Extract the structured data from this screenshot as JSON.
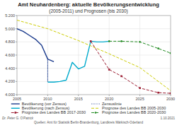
{
  "chart_data": {
    "type": "line",
    "title": "Amt Neuhardenberg: aktuelle Bevölkerungsentwicklung",
    "subtitle": "(2005-2011) und Prognosen (bis 2030)",
    "xlim": [
      2005,
      2030
    ],
    "xticks": [
      2005,
      2010,
      2015,
      2020,
      2025,
      2030
    ],
    "ylim": [
      4000,
      5200
    ],
    "yticks": [
      {
        "value": 4000,
        "label": "4.000"
      },
      {
        "value": 4200,
        "label": "4.200"
      },
      {
        "value": 4400,
        "label": "4.400"
      },
      {
        "value": 4600,
        "label": "4.600"
      },
      {
        "value": 4800,
        "label": "4.800"
      },
      {
        "value": 5000,
        "label": "5.000"
      },
      {
        "value": 5200,
        "label": "5.200"
      }
    ],
    "grid": true,
    "legend": "bottom",
    "series": [
      {
        "name": "Bevölkerung (vor Zensus)",
        "color": "#1a3a8c",
        "line_style": "solid",
        "x": [
          2005,
          2006,
          2007,
          2008,
          2009,
          2010,
          2011
        ],
        "values": [
          5000,
          4960,
          4900,
          4840,
          4750,
          4540,
          4500
        ]
      },
      {
        "name": "Zensuslinie",
        "color": "#1a3a8c",
        "line_style": "dotted",
        "x": [
          2010,
          2010
        ],
        "values": [
          4540,
          4190
        ]
      },
      {
        "name": "Bevölkerung (nach Zensus)",
        "color": "#00aacc",
        "line_style": "solid",
        "x": [
          2010,
          2011,
          2012,
          2013,
          2014,
          2015,
          2016,
          2017,
          2018,
          2019,
          2020
        ],
        "values": [
          4190,
          4190,
          4200,
          4220,
          4490,
          4390,
          4430,
          4810,
          4800,
          4800,
          4810
        ]
      },
      {
        "name": "Prognose des Landes BB 2005-2030",
        "color": "#cccc00",
        "line_style": "dashed",
        "x": [
          2005,
          2010,
          2015,
          2020,
          2025,
          2030
        ],
        "values": [
          5130,
          5000,
          4820,
          4620,
          4410,
          4060
        ]
      },
      {
        "name": "Prognose des Landes BB 2017-2030",
        "color": "#9b1b30",
        "line_style": "dashed",
        "marker": "square",
        "x": [
          2017,
          2020,
          2022,
          2025,
          2028,
          2030
        ],
        "values": [
          4810,
          4380,
          4280,
          4100,
          4030,
          4020
        ]
      },
      {
        "name": "Prognose des Landes BB 2020-2030",
        "color": "#228b22",
        "line_style": "dashed",
        "marker": "circle",
        "x": [
          2020,
          2022,
          2025,
          2028,
          2030
        ],
        "values": [
          4810,
          4810,
          4800,
          4700,
          4630
        ]
      }
    ],
    "annotations": [
      "Dr. Peter G. O'Patrick",
      "Quellen: Amt für Statistik Berlin-Brandenburg, Landkreis Märkisch-Oderland",
      "1.10.2021"
    ]
  }
}
